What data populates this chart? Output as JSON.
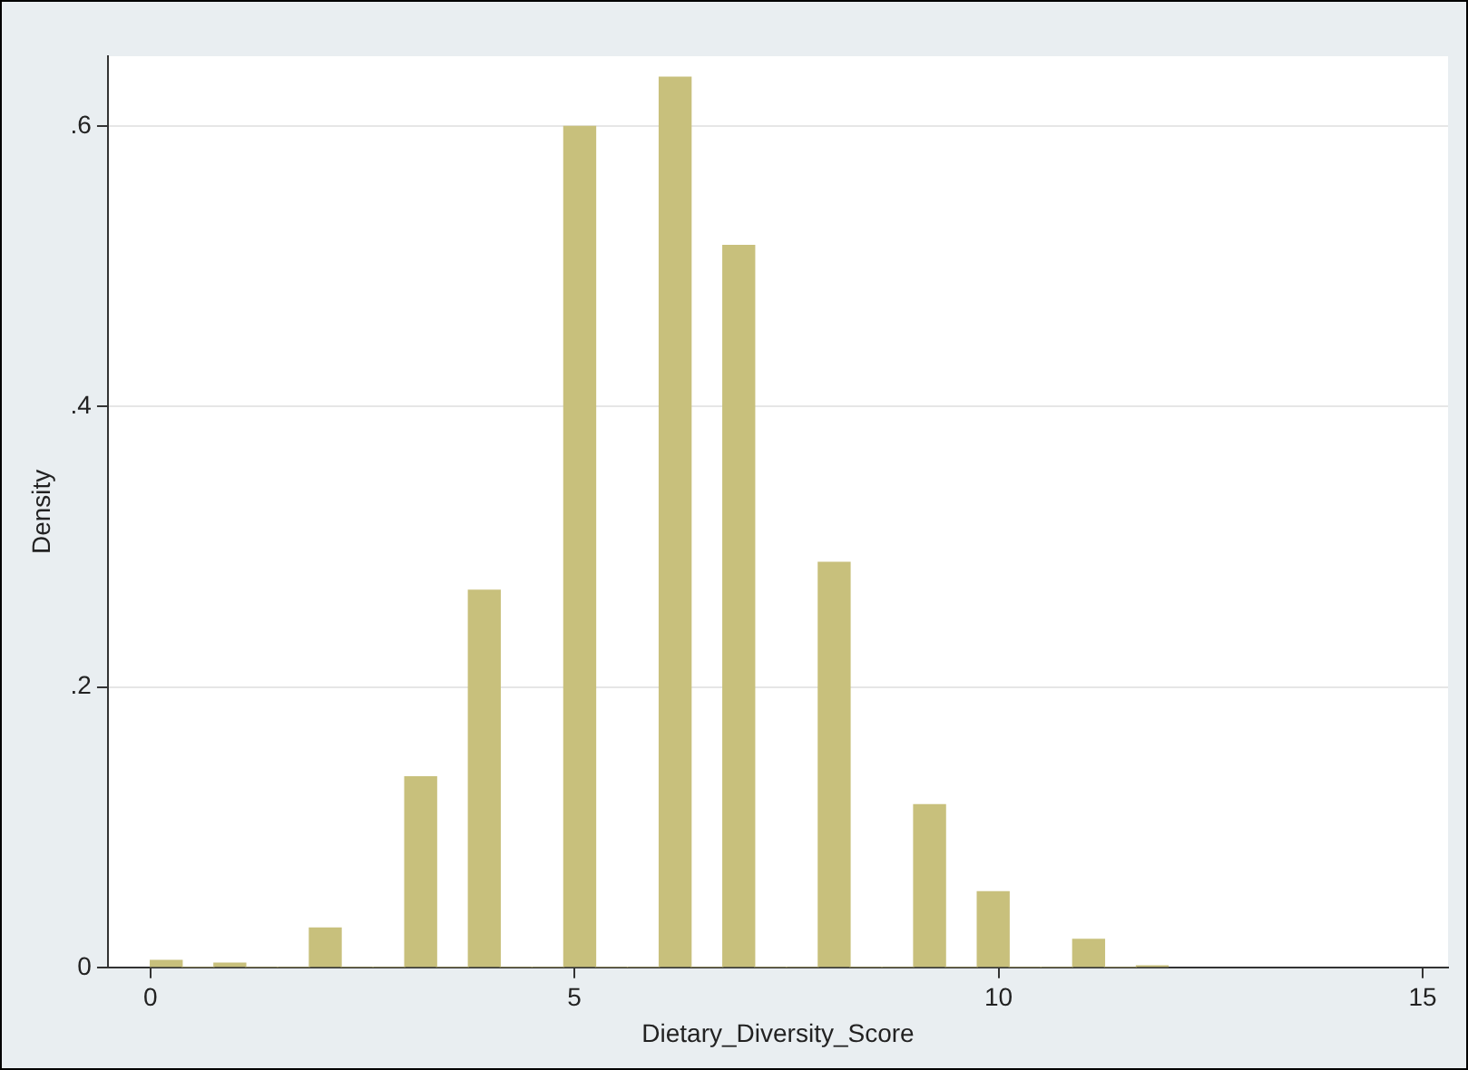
{
  "chart_data": {
    "type": "histogram",
    "xlabel": "Dietary_Diversity_Score",
    "ylabel": "Density",
    "bins": [
      0,
      0.375,
      0.75,
      1.125,
      1.5,
      1.875,
      2.25,
      2.625,
      3,
      3.375,
      3.75,
      4.125,
      4.5,
      4.875,
      5.25,
      5.625,
      6,
      6.375,
      6.75,
      7.125,
      7.5,
      7.875,
      8.25,
      8.625,
      9,
      9.375,
      9.75,
      10.125,
      10.5,
      10.875,
      11.25,
      11.625,
      12
    ],
    "values": [
      0.005,
      0,
      0.003,
      0,
      0,
      0.028,
      0,
      0,
      0.136,
      0,
      0.269,
      0,
      0,
      0.6,
      0,
      0,
      0.635,
      0,
      0.515,
      0,
      0,
      0.289,
      0,
      0,
      0.116,
      0,
      0.054,
      0,
      0,
      0.02,
      0,
      0.001
    ],
    "color": "#c8c07c",
    "xlim": [
      -0.5,
      15.3
    ],
    "xticks": [
      0,
      5,
      10,
      15
    ],
    "ylim": [
      0,
      0.65
    ],
    "yticks": [
      0,
      {
        "value": 0.2,
        "label": ".2"
      },
      {
        "value": 0.4,
        "label": ".4"
      },
      {
        "value": 0.6,
        "label": ".6"
      }
    ],
    "grid": "y"
  }
}
